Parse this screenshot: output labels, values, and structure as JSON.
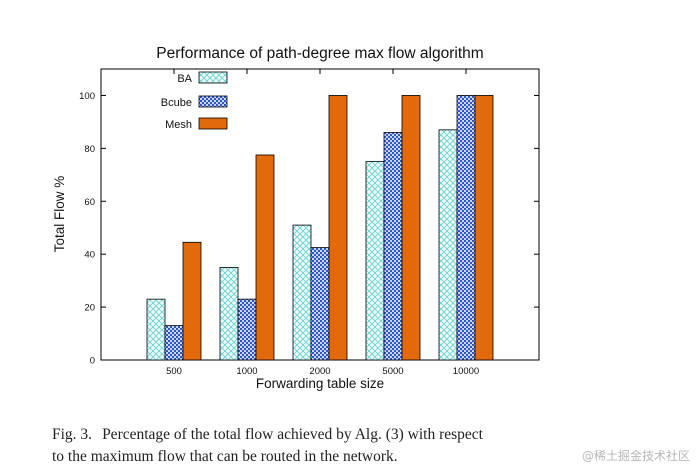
{
  "chart_data": {
    "type": "bar",
    "title": "Performance of path-degree max flow algorithm",
    "xlabel": "Forwarding table size",
    "ylabel": "Total Flow %",
    "categories": [
      "500",
      "1000",
      "2000",
      "5000",
      "10000"
    ],
    "ylim": [
      0,
      110
    ],
    "yticks": [
      0,
      20,
      40,
      60,
      80,
      100
    ],
    "legend_position": "top-left",
    "series": [
      {
        "name": "BA",
        "values": [
          23,
          35,
          51,
          75,
          87
        ],
        "color": "#7fd8d8",
        "pattern": "crosshatch"
      },
      {
        "name": "Bcube",
        "values": [
          13,
          23,
          42.5,
          86,
          100
        ],
        "color": "#3a5fc8",
        "pattern": "checker"
      },
      {
        "name": "Mesh",
        "values": [
          44.5,
          77.5,
          100,
          100,
          100
        ],
        "color": "#e36a0a",
        "pattern": "solid"
      }
    ]
  },
  "caption": {
    "label": "Fig. 3.",
    "line1": "Percentage of the total flow achieved by Alg. (3) with respect",
    "line2": "to the maximum flow that can be routed in the network."
  },
  "watermark": "@稀土掘金技术社区"
}
